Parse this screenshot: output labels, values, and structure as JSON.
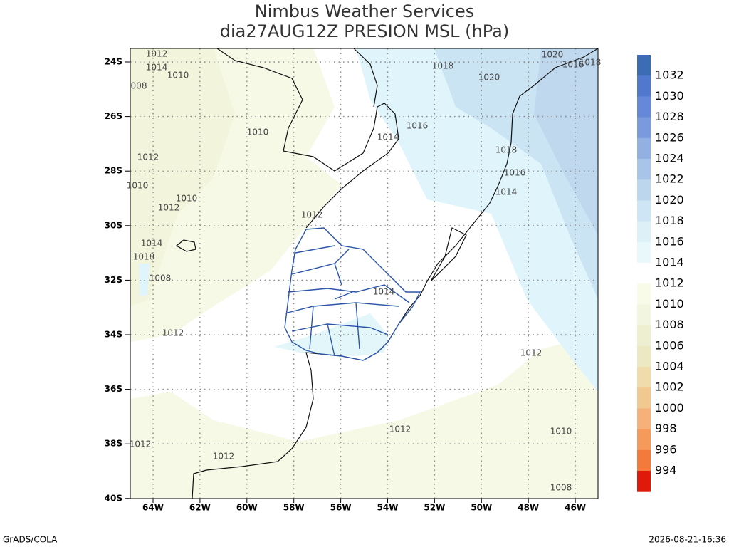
{
  "title": [
    "Nimbus Weather Services",
    "dia27AUG12Z PRESION MSL (hPa)"
  ],
  "lat_labels": [
    "24S",
    "26S",
    "28S",
    "30S",
    "32S",
    "34S",
    "36S",
    "38S",
    "40S"
  ],
  "lon_labels": [
    "64W",
    "62W",
    "60W",
    "58W",
    "56W",
    "54W",
    "52W",
    "50W",
    "48W",
    "46W"
  ],
  "colorbar": {
    "labels": [
      "1032",
      "1030",
      "1028",
      "1026",
      "1024",
      "1022",
      "1020",
      "1018",
      "1016",
      "1014",
      "1012",
      "1010",
      "1008",
      "1006",
      "1004",
      "1002",
      "1000",
      "998",
      "996",
      "994"
    ],
    "colors": [
      "#3b6cb4",
      "#5078cc",
      "#6688d8",
      "#7b9ade",
      "#92b0e2",
      "#a8c4e8",
      "#bcd6ee",
      "#cde5f4",
      "#dcf0f8",
      "#e8f8fb",
      "#ffffff",
      "#f8fbe8",
      "#f3f6de",
      "#eeefd0",
      "#ece9c2",
      "#efdcaa",
      "#f2c891",
      "#f6b17a",
      "#f69a5c",
      "#f37a3a",
      "#e01a0a"
    ]
  },
  "contour_labels": [
    "1012",
    "1014",
    "1010",
    "008",
    "1010",
    "1012",
    "1010",
    "1010",
    "1012",
    "1014",
    "1018",
    "1008",
    "1012",
    "1018",
    "1020",
    "1020",
    "1016",
    "1018",
    "1016",
    "1014",
    "1018",
    "1016",
    "1014",
    "1012",
    "1014",
    "1012",
    "1012",
    "1010",
    "1012",
    "1012",
    "1008"
  ],
  "footer": {
    "left": "GrADS/COLA",
    "right": "2026-08-21-16:36"
  }
}
